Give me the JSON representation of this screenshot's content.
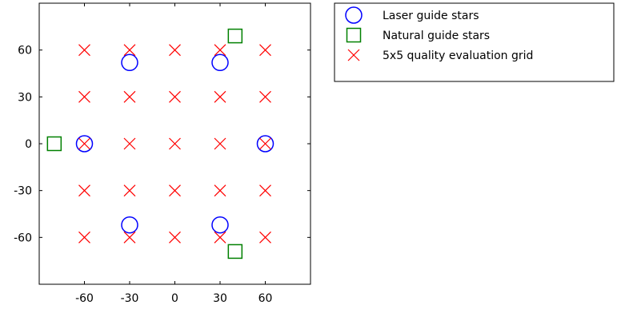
{
  "chart_data": {
    "type": "scatter",
    "title": "",
    "xlabel": "",
    "ylabel": "",
    "xlim": [
      -90,
      90
    ],
    "ylim": [
      -90,
      90
    ],
    "xticks": [
      -60,
      -30,
      0,
      30,
      60
    ],
    "yticks": [
      -60,
      -30,
      0,
      30,
      60
    ],
    "grid": false,
    "legend_position": "outside-top-right",
    "series": [
      {
        "name": "Laser guide stars",
        "marker": "circle",
        "color": "#0000ff",
        "points": [
          {
            "x": -30,
            "y": 52
          },
          {
            "x": 30,
            "y": 52
          },
          {
            "x": -60,
            "y": 0
          },
          {
            "x": 60,
            "y": 0
          },
          {
            "x": -30,
            "y": -52
          },
          {
            "x": 30,
            "y": -52
          }
        ]
      },
      {
        "name": "Natural guide stars",
        "marker": "square",
        "color": "#008000",
        "points": [
          {
            "x": 40,
            "y": 69
          },
          {
            "x": -80,
            "y": 0
          },
          {
            "x": 40,
            "y": -69
          }
        ]
      },
      {
        "name": "5x5 quality evaluation grid",
        "marker": "x",
        "color": "#ff0000",
        "points": [
          {
            "x": -60,
            "y": 60
          },
          {
            "x": -30,
            "y": 60
          },
          {
            "x": 0,
            "y": 60
          },
          {
            "x": 30,
            "y": 60
          },
          {
            "x": 60,
            "y": 60
          },
          {
            "x": -60,
            "y": 30
          },
          {
            "x": -30,
            "y": 30
          },
          {
            "x": 0,
            "y": 30
          },
          {
            "x": 30,
            "y": 30
          },
          {
            "x": 60,
            "y": 30
          },
          {
            "x": -60,
            "y": 0
          },
          {
            "x": -30,
            "y": 0
          },
          {
            "x": 0,
            "y": 0
          },
          {
            "x": 30,
            "y": 0
          },
          {
            "x": 60,
            "y": 0
          },
          {
            "x": -60,
            "y": -30
          },
          {
            "x": -30,
            "y": -30
          },
          {
            "x": 0,
            "y": -30
          },
          {
            "x": 30,
            "y": -30
          },
          {
            "x": 60,
            "y": -30
          },
          {
            "x": -60,
            "y": -60
          },
          {
            "x": -30,
            "y": -60
          },
          {
            "x": 0,
            "y": -60
          },
          {
            "x": 30,
            "y": -60
          },
          {
            "x": 60,
            "y": -60
          }
        ]
      }
    ]
  }
}
